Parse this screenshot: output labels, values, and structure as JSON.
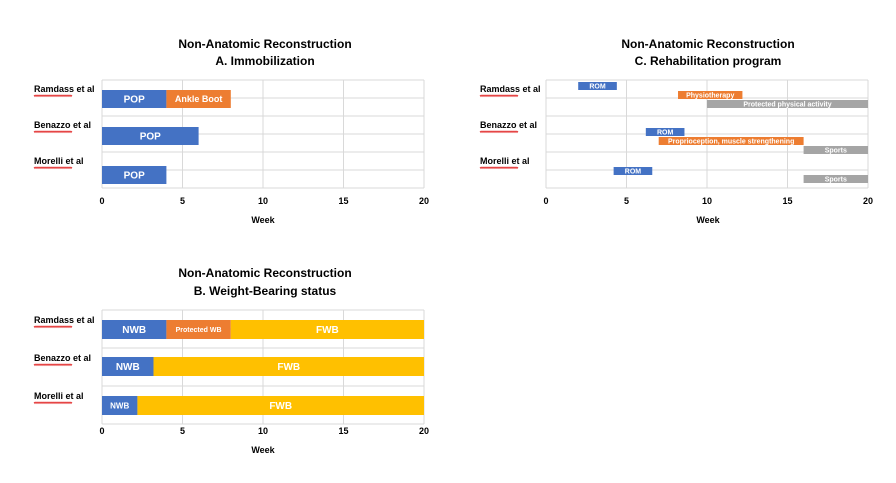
{
  "chart_data": [
    {
      "id": "A",
      "type": "bar",
      "title": [
        "Non-Anatomic Reconstruction",
        "A. Immobilization"
      ],
      "xlabel": "Week",
      "xlim": [
        0,
        20
      ],
      "xticks": [
        0,
        5,
        10,
        15,
        20
      ],
      "categories": [
        "Ramdass et al",
        "Benazzo et al",
        "Morelli et al"
      ],
      "segments": [
        {
          "category": "Ramdass et al",
          "start": 0,
          "end": 4,
          "label": "POP",
          "color": "#4472C4"
        },
        {
          "category": "Ramdass et al",
          "start": 4,
          "end": 8,
          "label": "Ankle Boot",
          "color": "#ED7D31"
        },
        {
          "category": "Benazzo et al",
          "start": 0,
          "end": 6,
          "label": "POP",
          "color": "#4472C4"
        },
        {
          "category": "Morelli et al",
          "start": 0,
          "end": 4,
          "label": "POP",
          "color": "#4472C4"
        }
      ]
    },
    {
      "id": "B",
      "type": "bar",
      "title": [
        "Non-Anatomic Reconstruction",
        "B. Weight-Bearing status"
      ],
      "xlabel": "Week",
      "xlim": [
        0,
        20
      ],
      "xticks": [
        0,
        5,
        10,
        15,
        20
      ],
      "categories": [
        "Ramdass et al",
        "Benazzo et al",
        "Morelli et al"
      ],
      "segments": [
        {
          "category": "Ramdass et al",
          "start": 0,
          "end": 4,
          "label": "NWB",
          "color": "#4472C4"
        },
        {
          "category": "Ramdass et al",
          "start": 4,
          "end": 8,
          "label": "Protected WB",
          "color": "#ED7D31"
        },
        {
          "category": "Ramdass et al",
          "start": 8,
          "end": 20,
          "label": "FWB",
          "color": "#FFC000"
        },
        {
          "category": "Benazzo et al",
          "start": 0,
          "end": 3.2,
          "label": "NWB",
          "color": "#4472C4"
        },
        {
          "category": "Benazzo et al",
          "start": 3.2,
          "end": 20,
          "label": "FWB",
          "color": "#FFC000"
        },
        {
          "category": "Morelli et al",
          "start": 0,
          "end": 2.2,
          "label": "NWB",
          "color": "#4472C4"
        },
        {
          "category": "Morelli et al",
          "start": 2.2,
          "end": 20,
          "label": "FWB",
          "color": "#FFC000"
        }
      ]
    },
    {
      "id": "C",
      "type": "bar",
      "title": [
        "Non-Anatomic Reconstruction",
        "C. Rehabilitation program"
      ],
      "xlabel": "Week",
      "xlim": [
        0,
        20
      ],
      "xticks": [
        0,
        5,
        10,
        15,
        20
      ],
      "categories": [
        "Ramdass et al",
        "Benazzo et al",
        "Morelli et al"
      ],
      "segments": [
        {
          "category": "Ramdass et al",
          "start": 2,
          "end": 4.4,
          "label": "ROM",
          "color": "#4472C4"
        },
        {
          "category": "Ramdass et al",
          "start": 8.2,
          "end": 12.2,
          "label": "Physiotherapy",
          "color": "#ED7D31"
        },
        {
          "category": "Ramdass et al",
          "start": 10,
          "end": 20,
          "label": "Protected physical activity",
          "color": "#A5A5A5"
        },
        {
          "category": "Benazzo et al",
          "start": 6.2,
          "end": 8.6,
          "label": "ROM",
          "color": "#4472C4"
        },
        {
          "category": "Benazzo et al",
          "start": 7,
          "end": 16,
          "label": "Proprioception, muscle strengthening",
          "color": "#ED7D31"
        },
        {
          "category": "Benazzo et al",
          "start": 16,
          "end": 20,
          "label": "Sports",
          "color": "#A5A5A5"
        },
        {
          "category": "Morelli et al",
          "start": 4.2,
          "end": 6.6,
          "label": "ROM",
          "color": "#4472C4"
        },
        {
          "category": "Morelli et al",
          "start": 16,
          "end": 20,
          "label": "Sports",
          "color": "#A5A5A5"
        }
      ]
    }
  ]
}
